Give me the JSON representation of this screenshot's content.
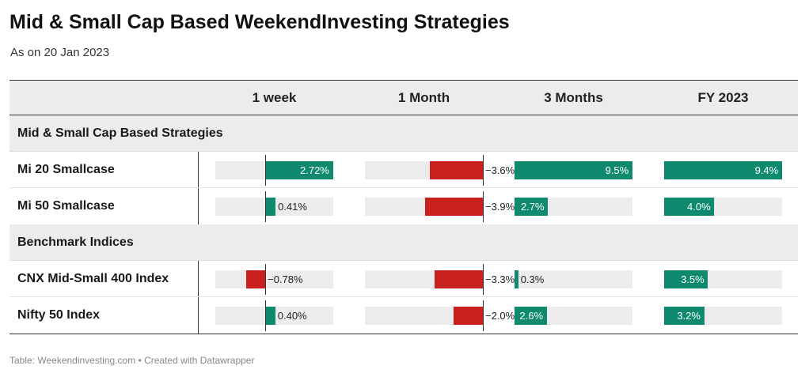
{
  "title": "Mid & Small Cap Based WeekendInvesting Strategies",
  "subtitle": "As on 20 Jan 2023",
  "footer": "Table: Weekendinvesting.com • Created with Datawrapper",
  "colors": {
    "positive": "#0f8a6e",
    "negative": "#c8201e",
    "cell_bg": "#ececec"
  },
  "chart_data": {
    "type": "table",
    "columns": [
      "1 week",
      "1 Month",
      "3 Months",
      "FY 2023"
    ],
    "groups": [
      {
        "label": "Mid & Small Cap Based Strategies",
        "rows": [
          {
            "name": "Mi 20 Smallcase",
            "values": [
              2.72,
              -3.6,
              9.5,
              9.4
            ],
            "labels": [
              "2.72%",
              "−3.6%",
              "9.5%",
              "9.4%"
            ]
          },
          {
            "name": "Mi 50 Smallcase",
            "values": [
              0.41,
              -3.9,
              2.7,
              4.0
            ],
            "labels": [
              "0.41%",
              "−3.9%",
              "2.7%",
              "4.0%"
            ]
          }
        ]
      },
      {
        "label": "Benchmark Indices",
        "rows": [
          {
            "name": "CNX Mid-Small 400 Index",
            "values": [
              -0.78,
              -3.3,
              0.3,
              3.5
            ],
            "labels": [
              "−0.78%",
              "−3.3%",
              "0.3%",
              "3.5%"
            ]
          },
          {
            "name": "Nifty 50 Index",
            "values": [
              0.4,
              -2.0,
              2.6,
              3.2
            ],
            "labels": [
              "0.40%",
              "−2.0%",
              "2.6%",
              "3.2%"
            ]
          }
        ]
      }
    ],
    "column_ranges": [
      [
        -2.0,
        2.72
      ],
      [
        -8.0,
        0
      ],
      [
        0,
        9.5
      ],
      [
        0,
        9.4
      ]
    ]
  }
}
